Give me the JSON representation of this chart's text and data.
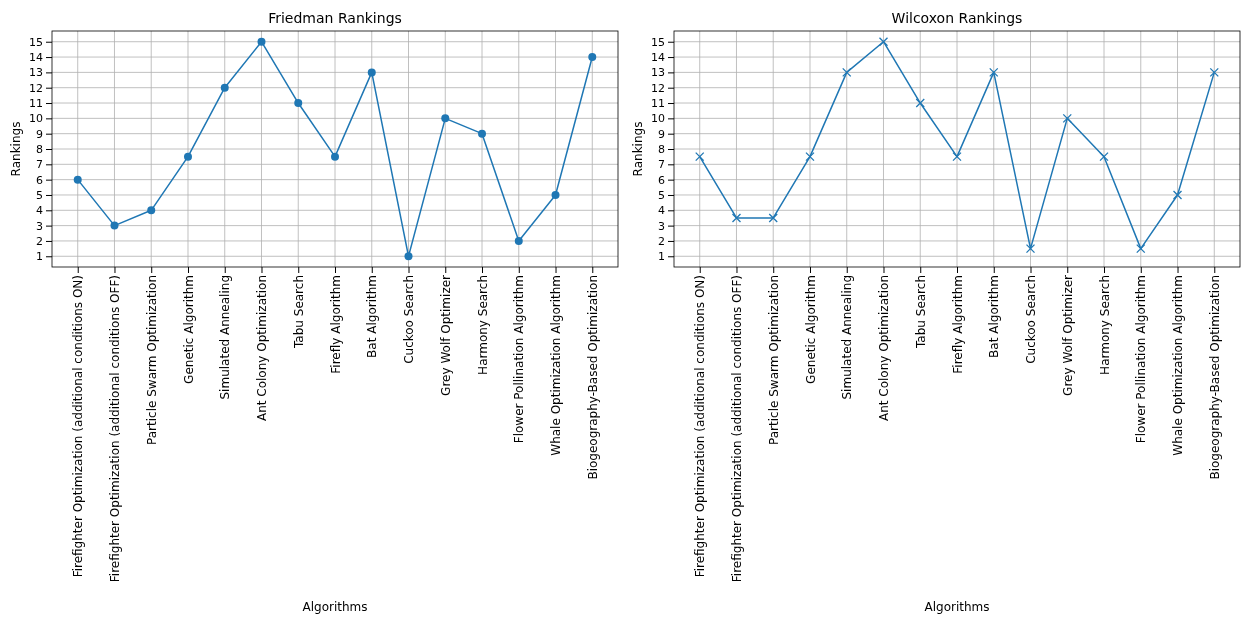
{
  "chart_data": [
    {
      "type": "line",
      "title": "Friedman Rankings",
      "xlabel": "Algorithms",
      "ylabel": "Rankings",
      "categories": [
        "Firefighter Optimization (additional conditions ON)",
        "Firefighter Optimization (additional conditions OFF)",
        "Particle Swarm Optimization",
        "Genetic Algorithm",
        "Simulated Annealing",
        "Ant Colony Optimization",
        "Tabu Search",
        "Firefly Algorithm",
        "Bat Algorithm",
        "Cuckoo Search",
        "Grey Wolf Optimizer",
        "Harmony Search",
        "Flower Pollination Algorithm",
        "Whale Optimization Algorithm",
        "Biogeography-Based Optimization"
      ],
      "series": [
        {
          "color": "#1f77b4",
          "values": [
            6,
            3,
            4,
            7.5,
            12,
            15,
            11,
            7.5,
            13,
            1,
            10,
            9,
            2,
            5,
            14
          ]
        }
      ],
      "ylim": [
        0.3,
        15.7
      ],
      "yticks": [
        1,
        2,
        3,
        4,
        5,
        6,
        7,
        8,
        9,
        10,
        11,
        12,
        13,
        14,
        15
      ],
      "grid": true,
      "marker": "circle",
      "line_style": "solid"
    },
    {
      "type": "line",
      "title": "Wilcoxon Rankings",
      "xlabel": "Algorithms",
      "ylabel": "Rankings",
      "categories": [
        "Firefighter Optimization (additional conditions ON)",
        "Firefighter Optimization (additional conditions OFF)",
        "Particle Swarm Optimization",
        "Genetic Algorithm",
        "Simulated Annealing",
        "Ant Colony Optimization",
        "Tabu Search",
        "Firefly Algorithm",
        "Bat Algorithm",
        "Cuckoo Search",
        "Grey Wolf Optimizer",
        "Harmony Search",
        "Flower Pollination Algorithm",
        "Whale Optimization Algorithm",
        "Biogeography-Based Optimization"
      ],
      "series": [
        {
          "color": "#1f77b4",
          "values": [
            7.5,
            3.5,
            3.5,
            7.5,
            13,
            15,
            11,
            7.5,
            13,
            1.5,
            10,
            7.5,
            1.5,
            5,
            13
          ]
        }
      ],
      "ylim": [
        0.3,
        15.7
      ],
      "yticks": [
        1,
        2,
        3,
        4,
        5,
        6,
        7,
        8,
        9,
        10,
        11,
        12,
        13,
        14,
        15
      ],
      "grid": true,
      "marker": "cross",
      "line_style": "solid"
    }
  ]
}
